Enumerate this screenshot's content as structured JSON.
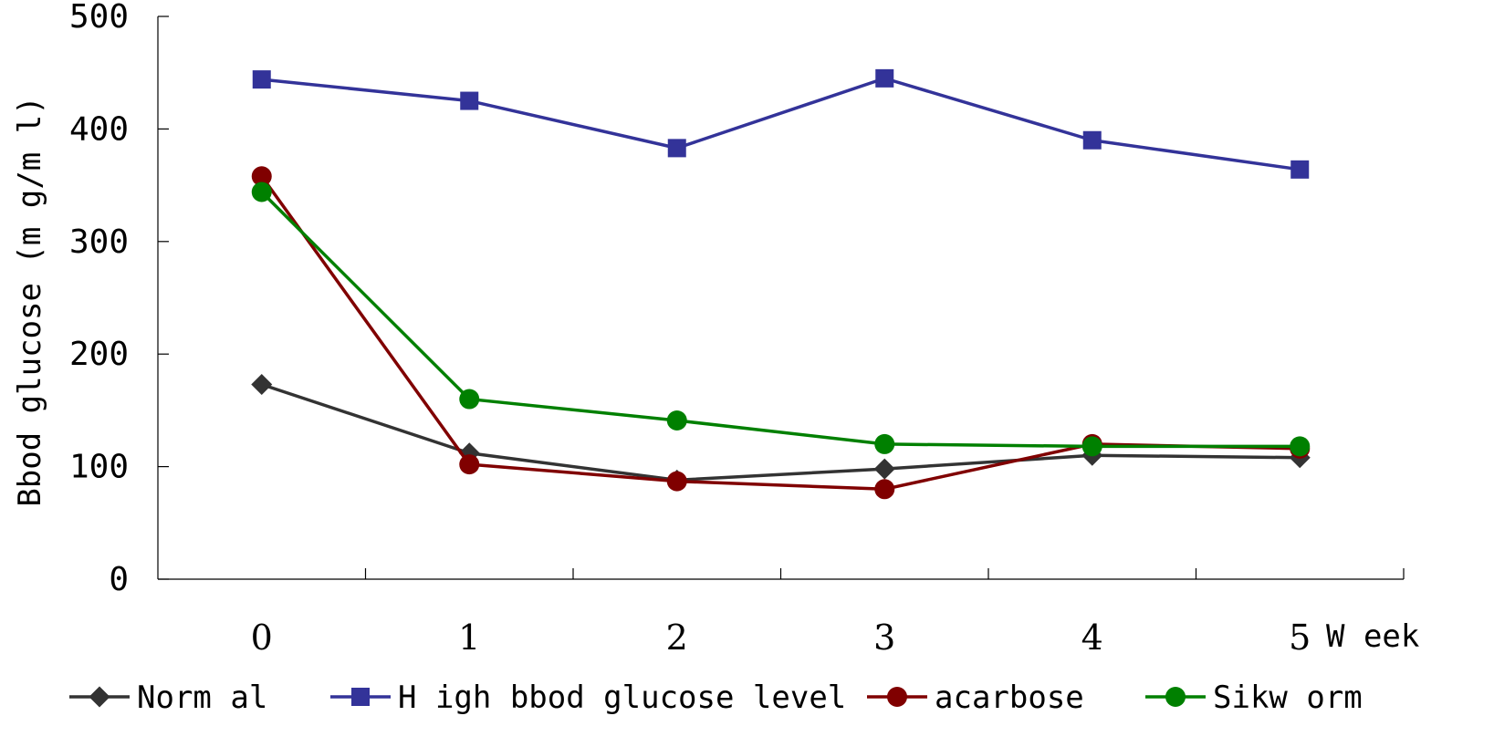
{
  "chart_data": {
    "type": "line",
    "ylabel": "Bbod glucose (m g/m l)",
    "xlabel": "W eek",
    "categories": [
      "0",
      "1",
      "2",
      "3",
      "4",
      "5"
    ],
    "ylim": [
      0,
      500
    ],
    "yticks": [
      "0",
      "100",
      "200",
      "300",
      "400",
      "500"
    ],
    "grid": false,
    "legend_position": "bottom",
    "series": [
      {
        "name": "Norm al",
        "marker": "diamond",
        "color": "#333333",
        "values": [
          173,
          112,
          88,
          98,
          110,
          108
        ]
      },
      {
        "name": "H igh bbod glucose level",
        "marker": "square",
        "color": "#333399",
        "values": [
          444,
          425,
          383,
          445,
          390,
          364
        ]
      },
      {
        "name": "acarbose",
        "marker": "circle",
        "color": "#800000",
        "values": [
          358,
          102,
          87,
          80,
          120,
          116
        ]
      },
      {
        "name": "Sikw orm",
        "marker": "circle",
        "color": "#008000",
        "values": [
          344,
          160,
          141,
          120,
          118,
          118
        ]
      }
    ]
  }
}
